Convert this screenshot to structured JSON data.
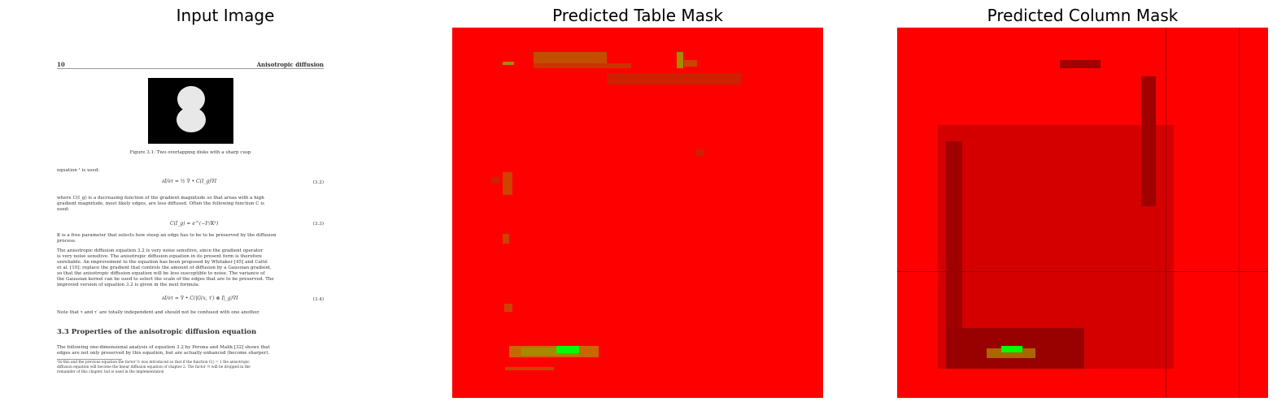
{
  "titles": {
    "input": "Input Image",
    "table_mask": "Predicted Table Mask",
    "column_mask": "Predicted Column Mask"
  },
  "document": {
    "page_number": "10",
    "running_header": "Anisotropic diffusion",
    "figure_caption": "Figure 3.1: Two overlapping disks with a sharp cusp",
    "lead_in": "equation ¹ is used:",
    "eq_3_2": "∂I/∂τ = ½ ∇ • C(I_g)∇I",
    "eq_3_2_num": "(3.2)",
    "para1": [
      "where C(I_g) is a decreasing function of the gradient magnitude so that areas with a high",
      "gradient magnitude, most likely edges, are less diffused.  Often the following function C is",
      "used:"
    ],
    "eq_3_3": "C(I_g) = e^(−I²/K²)",
    "eq_3_3_num": "(3.3)",
    "para2": [
      "K is a free parameter that selects how steep an edge has to be to be preserved by the diffusion",
      "process."
    ],
    "para3": [
      "The anisotropic diffusion equation 3.2 is very noise sensitive, since the gradient operator",
      "is very noise sensitive.  The anisotropic diffusion equation in its present form is therefore",
      "unreliable. An improvement to the equation has been proposed by Whitaker [45] and Catté",
      "et al. [10]: replace the gradient that controls the amount of diffusion by a Gaussian gradient,",
      "so that the anisotropic diffusion equation will be less susceptible to noise.  The variance of",
      "the Gaussian kernel can be used to select the scale of the edges that are to be preserved.  The",
      "improved version of equation 3.2 is given in the next formula:"
    ],
    "eq_3_4": "∂I/∂τ = ∇ • C(|G(x, τ′) ⊗ I|_g)∇I",
    "eq_3_4_num": "(3.4)",
    "note": "Note that τ and τ′ are totally independent and should not be confused with one another.",
    "section_title": "3.3    Properties of the anisotropic diffusion equation",
    "para4": [
      "The following one-dimensional analysis of equation 3.2 by Perona and Malik [32] shows that",
      "edges are not only preserved by this equation, but are actually enhanced (become sharper)."
    ],
    "footnote": [
      "¹In this and the previous equation the factor ½ was introduced so that if the function C() = 1 the anisotropic",
      "diffusion equation will become the linear diffusion equation of chapter 2.  The factor ½ will be dropped in the",
      "remainder of this chapter, but is used in the implementation"
    ]
  },
  "mask_colors": {
    "background": "#ff0000",
    "dark": "#b30000",
    "mid": "#cc4400",
    "olive": "#aa8800",
    "green": "#00ff00"
  }
}
